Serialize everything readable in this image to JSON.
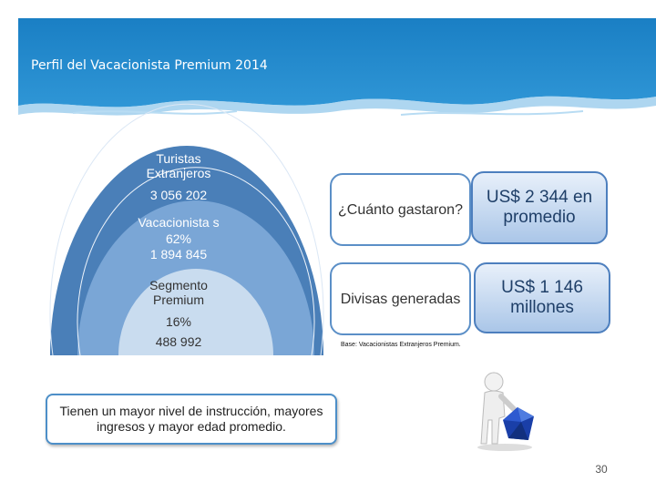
{
  "header": {
    "title": "Perfil del Vacacionista Premium 2014"
  },
  "circles": {
    "outer": {
      "label": "Turistas Extranjeros",
      "value": "3 056 202"
    },
    "middle": {
      "label": "Vacacionista s",
      "percent": "62%",
      "value": "1 894 845"
    },
    "inner": {
      "label": "Segmento Premium",
      "percent": "16%",
      "value": "488 992"
    }
  },
  "questions": [
    {
      "question": "¿Cuánto gastaron?",
      "answer": "US$ 2 344 en promedio"
    },
    {
      "question": "Divisas generadas",
      "answer": "US$ 1 146 millones"
    }
  ],
  "base_note": "Base: Vacacionistas Extranjeros Premium.",
  "summary": "Tienen un mayor nivel de instrucción, mayores ingresos y mayor edad promedio.",
  "page_number": "30",
  "colors": {
    "banner": "#1a7fc4",
    "outer_circle": "#4a7fb8",
    "middle_circle": "#7aa6d6",
    "inner_circle": "#c9dcef"
  },
  "icons": [
    "person-with-diamond-icon"
  ]
}
